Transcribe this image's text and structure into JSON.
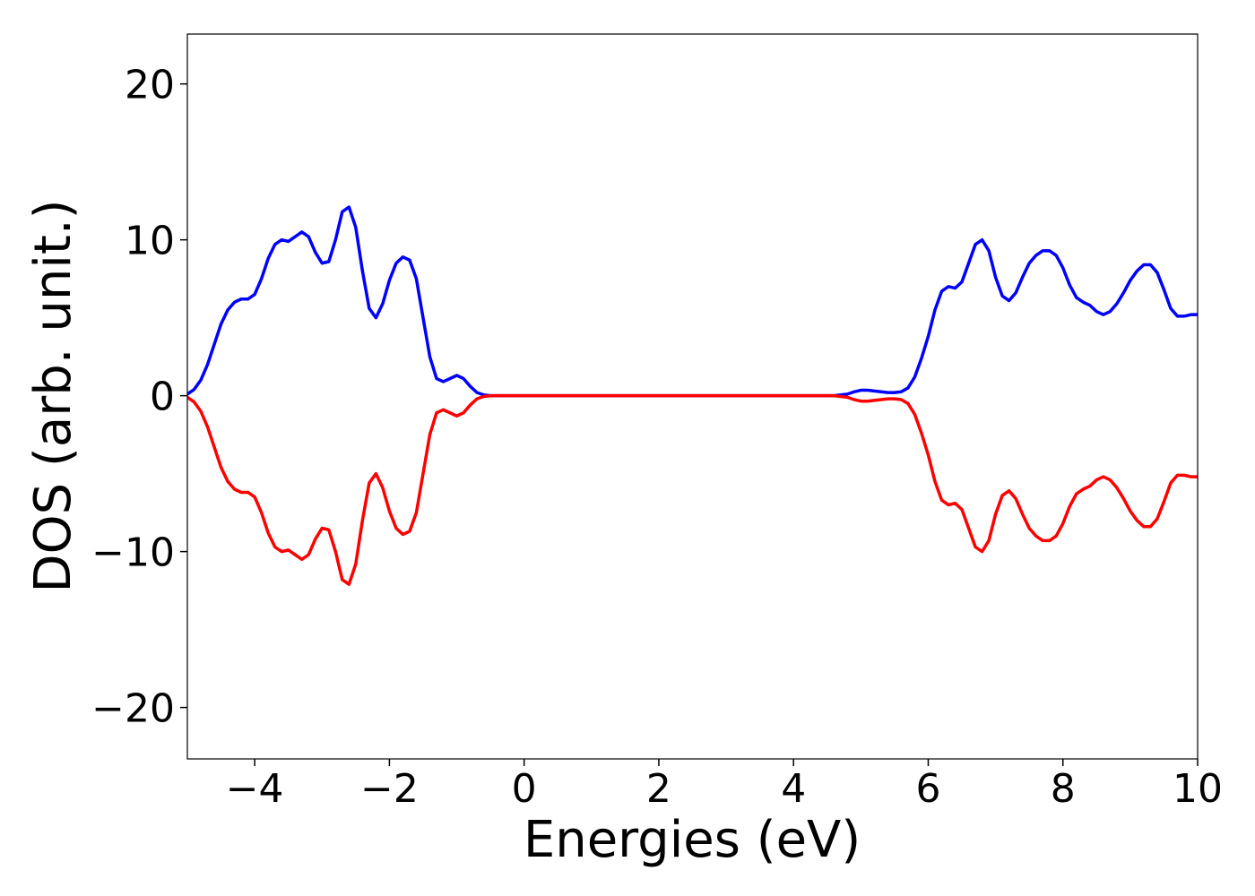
{
  "chart_data": {
    "type": "line",
    "xlabel": "Energies (eV)",
    "ylabel": "DOS (arb. unit.)",
    "x": [
      -5,
      -4.9,
      -4.8,
      -4.7,
      -4.6,
      -4.5,
      -4.4,
      -4.3,
      -4.2,
      -4.1,
      -4,
      -3.9,
      -3.8,
      -3.7,
      -3.6,
      -3.5,
      -3.4,
      -3.3,
      -3.2,
      -3.1,
      -3,
      -2.9,
      -2.8,
      -2.7,
      -2.6,
      -2.5,
      -2.4,
      -2.3,
      -2.2,
      -2.1,
      -2,
      -1.9,
      -1.8,
      -1.7,
      -1.6,
      -1.5,
      -1.4,
      -1.3,
      -1.2,
      -1.1,
      -1,
      -0.9,
      -0.8,
      -0.7,
      -0.6,
      -0.5,
      0,
      1,
      2,
      3,
      4,
      4.6,
      4.7,
      4.8,
      4.9,
      5,
      5.1,
      5.2,
      5.3,
      5.4,
      5.5,
      5.6,
      5.7,
      5.8,
      5.9,
      6,
      6.1,
      6.2,
      6.3,
      6.4,
      6.5,
      6.6,
      6.7,
      6.8,
      6.9,
      7,
      7.1,
      7.2,
      7.3,
      7.4,
      7.5,
      7.6,
      7.7,
      7.8,
      7.9,
      8,
      8.1,
      8.2,
      8.3,
      8.4,
      8.5,
      8.6,
      8.7,
      8.8,
      8.9,
      9,
      9.1,
      9.2,
      9.3,
      9.4,
      9.5,
      9.6,
      9.7,
      9.8,
      9.9,
      10
    ],
    "series": [
      {
        "color": "#0000ff",
        "values": [
          0.1,
          0.4,
          1.0,
          2.0,
          3.3,
          4.6,
          5.5,
          6.0,
          6.2,
          6.2,
          6.5,
          7.5,
          8.8,
          9.7,
          10.0,
          9.9,
          10.2,
          10.5,
          10.2,
          9.2,
          8.5,
          8.6,
          10.0,
          11.8,
          12.1,
          10.8,
          8.0,
          5.6,
          5.0,
          5.9,
          7.4,
          8.5,
          8.9,
          8.7,
          7.5,
          5.0,
          2.5,
          1.1,
          0.9,
          1.1,
          1.3,
          1.1,
          0.6,
          0.2,
          0.05,
          0,
          0,
          0,
          0,
          0,
          0,
          0,
          0.05,
          0.1,
          0.25,
          0.35,
          0.35,
          0.3,
          0.25,
          0.2,
          0.2,
          0.25,
          0.5,
          1.2,
          2.4,
          3.8,
          5.5,
          6.7,
          7.0,
          6.9,
          7.3,
          8.5,
          9.7,
          10.0,
          9.3,
          7.6,
          6.4,
          6.1,
          6.6,
          7.6,
          8.5,
          9.0,
          9.3,
          9.3,
          9.0,
          8.2,
          7.1,
          6.3,
          6.0,
          5.8,
          5.4,
          5.2,
          5.4,
          5.9,
          6.6,
          7.4,
          8.0,
          8.4,
          8.4,
          7.9,
          6.8,
          5.6,
          5.1,
          5.1,
          5.2,
          5.2
        ]
      },
      {
        "color": "#ff0000",
        "values": [
          -0.1,
          -0.4,
          -1.0,
          -2.0,
          -3.3,
          -4.6,
          -5.5,
          -6.0,
          -6.2,
          -6.2,
          -6.5,
          -7.5,
          -8.8,
          -9.7,
          -10.0,
          -9.9,
          -10.2,
          -10.5,
          -10.2,
          -9.2,
          -8.5,
          -8.6,
          -10.0,
          -11.8,
          -12.1,
          -10.8,
          -8.0,
          -5.6,
          -5.0,
          -5.9,
          -7.4,
          -8.5,
          -8.9,
          -8.7,
          -7.5,
          -5.0,
          -2.5,
          -1.1,
          -0.9,
          -1.1,
          -1.3,
          -1.1,
          -0.6,
          -0.2,
          -0.05,
          0,
          0,
          0,
          0,
          0,
          0,
          0,
          -0.05,
          -0.1,
          -0.25,
          -0.35,
          -0.35,
          -0.3,
          -0.25,
          -0.2,
          -0.2,
          -0.25,
          -0.5,
          -1.2,
          -2.4,
          -3.8,
          -5.5,
          -6.7,
          -7.0,
          -6.9,
          -7.3,
          -8.5,
          -9.7,
          -10.0,
          -9.3,
          -7.6,
          -6.4,
          -6.1,
          -6.6,
          -7.6,
          -8.5,
          -9.0,
          -9.3,
          -9.3,
          -9.0,
          -8.2,
          -7.1,
          -6.3,
          -6.0,
          -5.8,
          -5.4,
          -5.2,
          -5.4,
          -5.9,
          -6.6,
          -7.4,
          -8.0,
          -8.4,
          -8.4,
          -7.9,
          -6.8,
          -5.6,
          -5.1,
          -5.1,
          -5.2,
          -5.2
        ]
      }
    ],
    "xlim": [
      -5,
      10
    ],
    "xticks": [
      {
        "value": -4,
        "label": "−4"
      },
      {
        "value": -2,
        "label": "−2"
      },
      0,
      2,
      4,
      6,
      8,
      10
    ],
    "ylim": [
      -23.3,
      23.2
    ],
    "yticks": [
      {
        "value": -20,
        "label": "−20"
      },
      {
        "value": -10,
        "label": "−10"
      },
      0,
      10,
      20
    ],
    "grid": false
  }
}
